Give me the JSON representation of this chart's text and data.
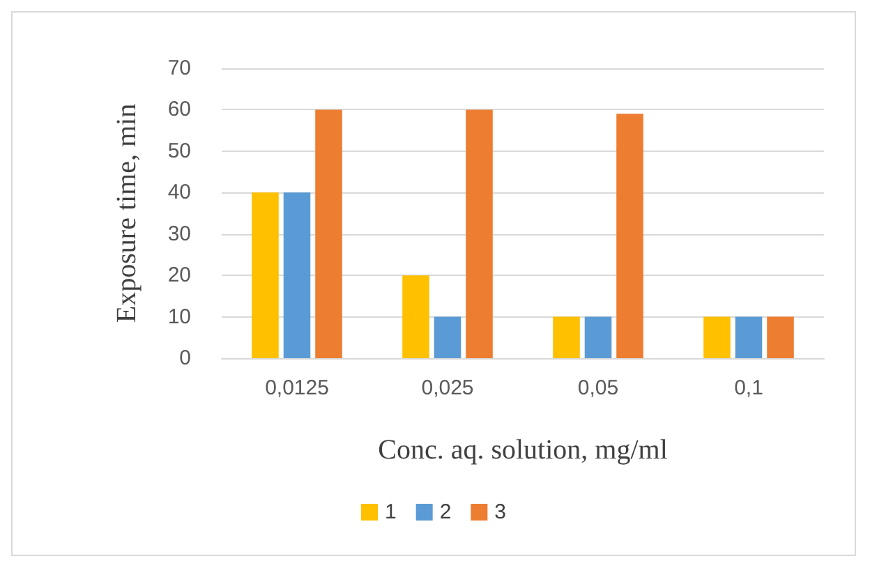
{
  "chart_data": {
    "type": "bar",
    "xlabel": "Conc. aq. solution, mg/ml",
    "ylabel": "Exposure time, min",
    "categories": [
      "0,0125",
      "0,025",
      "0,05",
      "0,1"
    ],
    "series": [
      {
        "name": "1",
        "color": "#ffc000",
        "values": [
          40,
          20,
          10,
          10
        ]
      },
      {
        "name": "2",
        "color": "#5b9bd5",
        "values": [
          40,
          10,
          10,
          10
        ]
      },
      {
        "name": "3",
        "color": "#ed7d31",
        "values": [
          60,
          60,
          59,
          10
        ]
      }
    ],
    "ylim": [
      0,
      70
    ],
    "yticks": [
      0,
      10,
      20,
      30,
      40,
      50,
      60,
      70
    ],
    "grid": "y",
    "legend": "bottom"
  }
}
